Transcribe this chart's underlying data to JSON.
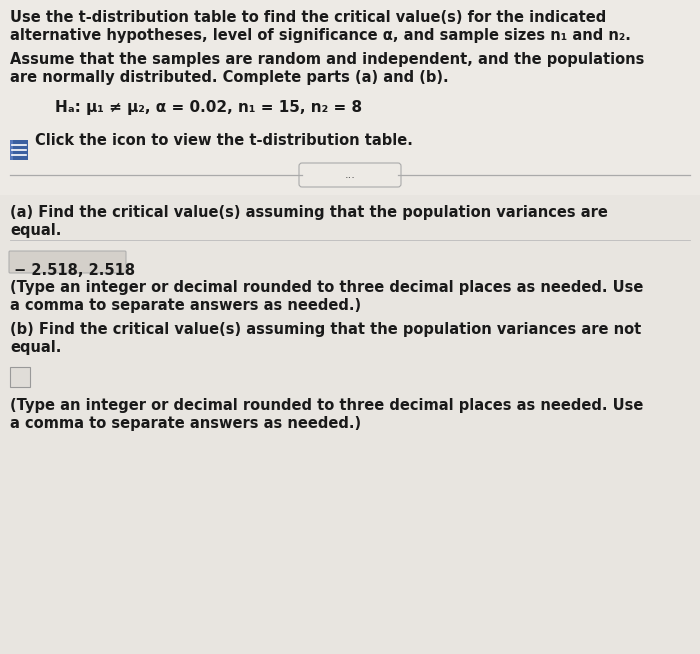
{
  "bg_color_top": "#edeae5",
  "bg_color_bottom": "#e8e5e0",
  "text_color": "#1a1a1a",
  "line1": "Use the t-distribution table to find the critical value(s) for the indicated",
  "line2": "alternative hypotheses, level of significance α, and sample sizes n₁ and n₂.",
  "line3": "Assume that the samples are random and independent, and the populations",
  "line4": "are normally distributed. Complete parts (a) and (b).",
  "hypothesis_line": "Hₐ: μ₁ ≠ μ₂, α = 0.02, n₁ = 15, n₂ = 8",
  "click_line": "Click the icon to view the t-distribution table.",
  "divider_text": "...",
  "part_a_label": "(a) Find the critical value(s) assuming that the population variances are",
  "part_a_label2": "equal.",
  "answer_a": "− 2.518, 2.518",
  "answer_a_note1": "(Type an integer or decimal rounded to three decimal places as needed. Use",
  "answer_a_note2": "a comma to separate answers as needed.)",
  "part_b_label": "(b) Find the critical value(s) assuming that the population variances are not",
  "part_b_label2": "equal.",
  "answer_b_note1": "(Type an integer or decimal rounded to three decimal places as needed. Use",
  "answer_b_note2": "a comma to separate answers as needed.)",
  "answer_a_box_color": "#d4d0ca",
  "answer_b_box_color": "#d4d0ca",
  "icon_blue": "#3a5fa0",
  "icon_blue2": "#5577bb",
  "fs": 10.5,
  "fs_hyp": 11.0
}
